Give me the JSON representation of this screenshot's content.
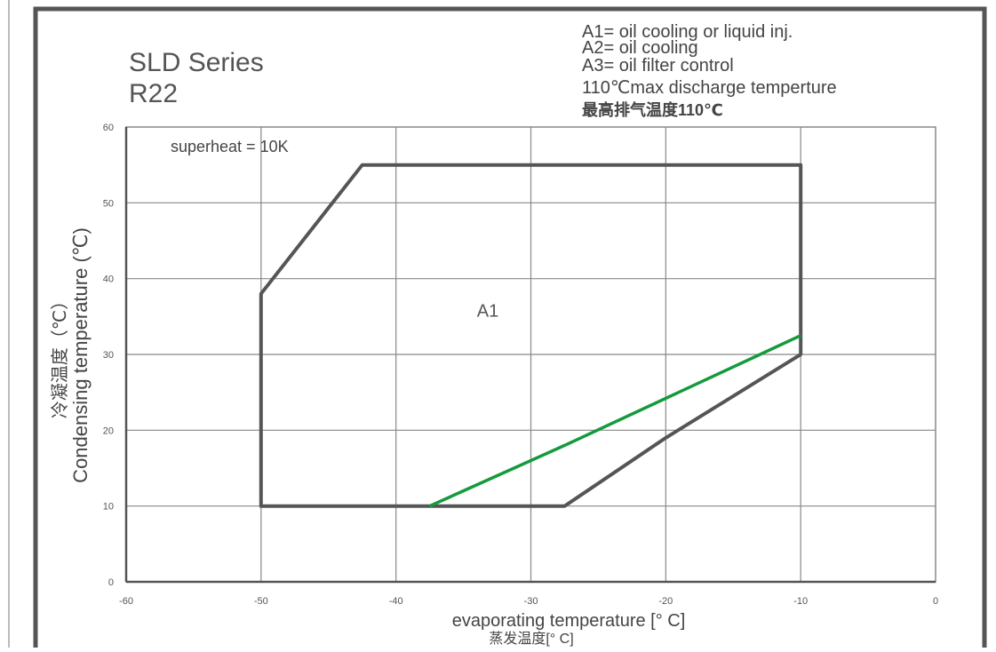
{
  "page": {
    "series_title": "SLD Series",
    "refrigerant": "R22",
    "notes": [
      "A1= oil cooling or liquid inj.",
      "A2= oil cooling",
      "A3= oil filter control",
      "110℃max discharge temperture",
      "最高排气温度110℃"
    ]
  },
  "chart_data": {
    "type": "line",
    "xlabel": "evaporating temperature [° C]",
    "xlabel_cn": "蒸发温度[° C]",
    "ylabel": "Condensing temperature (℃)",
    "ylabel_cn": "冷凝温度（℃）",
    "xlim": [
      -60,
      0
    ],
    "ylim": [
      0,
      60
    ],
    "x_ticks": [
      -60,
      -50,
      -40,
      -30,
      -20,
      -10,
      0
    ],
    "y_ticks": [
      0,
      10,
      20,
      30,
      40,
      50,
      60
    ],
    "grid": true,
    "annotations": [
      {
        "text": "superheat = 10K"
      },
      {
        "text": "A1",
        "x": -34,
        "y": 35
      }
    ],
    "series": [
      {
        "color": "#555555",
        "closed": true,
        "points": [
          [
            -50,
            38
          ],
          [
            -42.5,
            55
          ],
          [
            -10,
            55
          ],
          [
            -10,
            30
          ],
          [
            -20,
            19
          ],
          [
            -27.5,
            10
          ],
          [
            -50,
            10
          ]
        ]
      },
      {
        "color": "#149a3c",
        "closed": false,
        "points": [
          [
            -37.5,
            10
          ],
          [
            -27.5,
            18
          ],
          [
            -10,
            32.5
          ]
        ]
      }
    ]
  }
}
